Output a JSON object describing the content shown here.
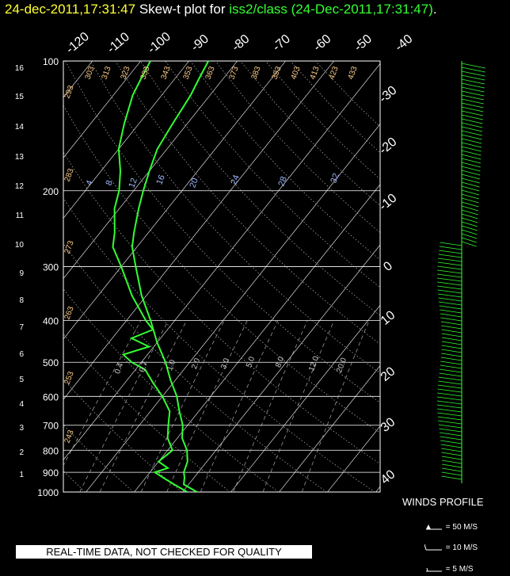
{
  "title": {
    "timestamp": "24-dec-2011,17:31:47",
    "prefix": "Skew-t plot for",
    "station": "iss2/class (24-Dec-2011,17:31:47)",
    "period": "."
  },
  "notice": "REAL-TIME DATA, NOT CHECKED FOR QUALITY",
  "winds": {
    "label": "WINDS PROFILE",
    "legend": [
      "= 50 M/S",
      "= 10 M/S",
      "= 5 M/S"
    ]
  },
  "colors": {
    "profile": "#33ff33",
    "title_time": "#ffff33",
    "grid": "#ffffff",
    "dry_adiabat_label": "#ffcc88",
    "mixing_ratio_label": "#9fb8ff"
  },
  "chart_data": {
    "type": "line",
    "y_scale": "log pressure (skew-T)",
    "pressure_levels": [
      100,
      200,
      300,
      400,
      500,
      600,
      700,
      800,
      900,
      1000
    ],
    "height_km_ticks": [
      "1",
      "2",
      "3",
      "4",
      "5",
      "6",
      "7",
      "8",
      "9",
      "10",
      "11",
      "12",
      "13",
      "14",
      "15",
      "16"
    ],
    "temperature_ticks_top": [
      "-120",
      "-110",
      "-100",
      "-90",
      "-80",
      "-70",
      "-60",
      "-50",
      "-40"
    ],
    "temperature_ticks_right": [
      "-30",
      "-20",
      "-10",
      "0",
      "10",
      "20",
      "30",
      "40"
    ],
    "dry_adiabat_labels": [
      "303",
      "313",
      "323",
      "333",
      "343",
      "353",
      "363",
      "373",
      "383",
      "393",
      "403",
      "413",
      "423",
      "433",
      "293",
      "283",
      "273",
      "263",
      "253",
      "243"
    ],
    "mixing_ratio_labels": [
      "4",
      "8",
      "12",
      "16",
      "20",
      "24",
      "28",
      "32"
    ],
    "mixing_ratio_lower_labels": [
      "0.4",
      "0.7",
      "1.0",
      "2.0",
      "3.0",
      "5.0",
      "8.0",
      "12.0",
      "20.0"
    ],
    "series": [
      {
        "role": "temperature",
        "points": [
          [
            1000,
            3
          ],
          [
            960,
            -1
          ],
          [
            925,
            -2
          ],
          [
            900,
            -3
          ],
          [
            850,
            -4
          ],
          [
            800,
            -6
          ],
          [
            750,
            -9
          ],
          [
            700,
            -11
          ],
          [
            650,
            -14
          ],
          [
            600,
            -17
          ],
          [
            550,
            -21
          ],
          [
            500,
            -25
          ],
          [
            450,
            -30
          ],
          [
            400,
            -35
          ],
          [
            350,
            -41
          ],
          [
            300,
            -47
          ],
          [
            270,
            -51
          ],
          [
            250,
            -53
          ],
          [
            220,
            -56
          ],
          [
            200,
            -58
          ],
          [
            180,
            -60
          ],
          [
            160,
            -62
          ],
          [
            140,
            -63
          ],
          [
            120,
            -64
          ],
          [
            110,
            -65
          ],
          [
            100,
            -66
          ]
        ]
      },
      {
        "role": "dewpoint",
        "points": [
          [
            1000,
            1
          ],
          [
            960,
            -3
          ],
          [
            930,
            -6
          ],
          [
            900,
            -9
          ],
          [
            880,
            -7
          ],
          [
            850,
            -10
          ],
          [
            800,
            -9
          ],
          [
            750,
            -12
          ],
          [
            700,
            -14
          ],
          [
            650,
            -16
          ],
          [
            600,
            -20
          ],
          [
            560,
            -24
          ],
          [
            520,
            -28
          ],
          [
            500,
            -32
          ],
          [
            480,
            -35
          ],
          [
            460,
            -31
          ],
          [
            440,
            -36
          ],
          [
            420,
            -33
          ],
          [
            400,
            -36
          ],
          [
            350,
            -43
          ],
          [
            300,
            -50
          ],
          [
            270,
            -55
          ],
          [
            250,
            -57
          ],
          [
            220,
            -61
          ],
          [
            200,
            -63
          ],
          [
            180,
            -66
          ],
          [
            160,
            -70
          ],
          [
            140,
            -73
          ],
          [
            120,
            -76
          ],
          [
            110,
            -77
          ],
          [
            100,
            -78
          ]
        ]
      }
    ]
  }
}
